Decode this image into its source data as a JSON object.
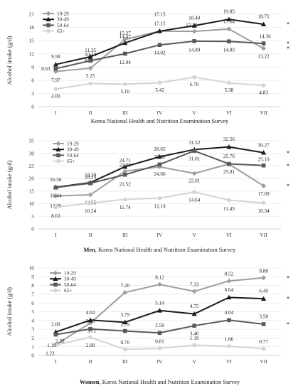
{
  "colors": {
    "19-29": "#9e9e9e",
    "30-49": "#1c1c1c",
    "50-64": "#595959",
    "65+": "#d4d4d4"
  },
  "chart_data": [
    {
      "type": "line",
      "title": "",
      "xlabel": "Korea National Health and Nutrition Examination Survey",
      "xlabel_bold_prefix": "",
      "ylabel": "Alcohol intake (g/d)",
      "categories": [
        "I",
        "II",
        "III",
        "IV",
        "V",
        "VI",
        "VII"
      ],
      "ylim": [
        0,
        21
      ],
      "yticks": [
        0,
        3,
        6,
        9,
        12,
        15,
        18,
        21
      ],
      "legend_position": "top-left",
      "series": [
        {
          "name": "19-29",
          "values": [
            7.97,
            8.73,
            15.27,
            17.15,
            17.1,
            17.64,
            13.22
          ]
        },
        {
          "name": "30-49",
          "values": [
            9.58,
            11.35,
            14.47,
            17.15,
            18.4,
            19.85,
            18.71
          ]
        },
        {
          "name": "50-64",
          "values": [
            8.63,
            10.44,
            12.04,
            14.02,
            14.89,
            14.83,
            14.36
          ]
        },
        {
          "name": "65+",
          "values": [
            4.0,
            5.25,
            5.1,
            5.42,
            6.7,
            5.38,
            4.83
          ]
        }
      ],
      "significance": [
        "*",
        "*",
        "*"
      ]
    },
    {
      "type": "line",
      "title": "",
      "xlabel": ", Korea National Health and Nutrition Examination Survey",
      "xlabel_bold_prefix": "Men",
      "ylabel": "Alcohol intake (g/d)",
      "categories": [
        "I",
        "II",
        "III",
        "IV",
        "V",
        "VI",
        "VII"
      ],
      "ylim": [
        0,
        35
      ],
      "yticks": [
        0,
        5,
        10,
        15,
        20,
        25,
        30,
        35
      ],
      "legend_position": "top-left",
      "series": [
        {
          "name": "19-29",
          "values": [
            13.09,
            13.55,
            22.9,
            24.66,
            22.01,
            25.76,
            17.09
          ]
        },
        {
          "name": "30-49",
          "values": [
            16.56,
            18.39,
            24.71,
            28.65,
            31.52,
            32.56,
            30.27
          ]
        },
        {
          "name": "50-64",
          "values": [
            16.44,
            18.13,
            21.52,
            25.6,
            31.01,
            25.81,
            25.19
          ]
        },
        {
          "name": "65+",
          "values": [
            8.63,
            10.24,
            11.74,
            12.19,
            14.64,
            11.43,
            10.34
          ]
        }
      ],
      "significance": [
        "*",
        "*",
        "*"
      ]
    },
    {
      "type": "line",
      "title": "",
      "xlabel": ", Korea National Health and Nutrition Examination Survey",
      "xlabel_bold_prefix": "Women",
      "ylabel": "Alcohol intake (g/d)",
      "categories": [
        "I",
        "II",
        "III",
        "IV",
        "V",
        "VI",
        "VII"
      ],
      "ylim": [
        0,
        10
      ],
      "yticks": [
        0,
        1,
        2,
        3,
        4,
        5,
        6,
        7,
        8,
        9,
        10
      ],
      "legend_position": "top-left",
      "series": [
        {
          "name": "19-29",
          "values": [
            1.23,
            3.71,
            7.2,
            8.12,
            7.33,
            8.52,
            8.88
          ]
        },
        {
          "name": "30-49",
          "values": [
            2.68,
            4.04,
            3.79,
            5.14,
            4.75,
            6.64,
            6.49
          ]
        },
        {
          "name": "50-64",
          "values": [
            2.39,
            3.03,
            2.79,
            2.58,
            3.4,
            4.04,
            3.58
          ]
        },
        {
          "name": "65+",
          "values": [
            1.19,
            2.08,
            0.7,
            0.81,
            1.19,
            1.06,
            0.77
          ]
        }
      ],
      "significance": [
        "*",
        "*",
        "*"
      ]
    }
  ]
}
